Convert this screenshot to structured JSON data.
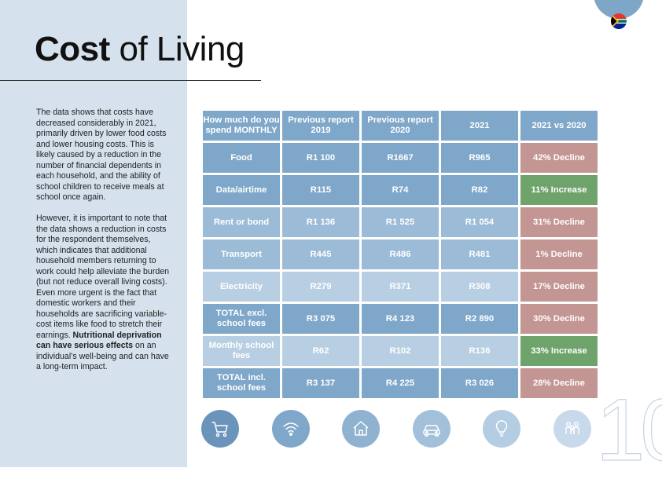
{
  "title": {
    "bold": "Cost",
    "rest": " of Living"
  },
  "body": {
    "p1": "The data shows that costs have decreased considerably in 2021, primarily driven by lower food costs and lower housing costs. This is likely caused by a reduction in the number of financial dependents in each household, and the ability of school children to receive meals at school once again.",
    "p2_text": "However, it is important to note that the data shows a reduction in costs for the respondent themselves, which indicates that additional household members returning to work could help alleviate the burden (but not reduce overall living costs). Even more urgent is the fact that domestic workers and their households are sacrificing variable-cost items like food to stretch their earnings.",
    "p2_bold": "Nutritional deprivation can have serious effects",
    "p2_end": " on an individual’s well-being and can have a long-term impact."
  },
  "table": {
    "headers": [
      "How much do you spend MONTHLY",
      "Previous report 2019",
      "Previous report 2020",
      "2021",
      "2021 vs 2020"
    ],
    "rows": [
      {
        "label": "Food",
        "y2019": "R1 100",
        "y2020": "R1667",
        "y2021": "R965",
        "change": "42% Decline"
      },
      {
        "label": "Data/airtime",
        "y2019": "R115",
        "y2020": "R74",
        "y2021": "R82",
        "change": "11% Increase"
      },
      {
        "label": "Rent or bond",
        "y2019": "R1 136",
        "y2020": "R1 525",
        "y2021": "R1 054",
        "change": "31% Decline"
      },
      {
        "label": "Transport",
        "y2019": "R445",
        "y2020": "R486",
        "y2021": "R481",
        "change": "1% Decline"
      },
      {
        "label": "Electricity",
        "y2019": "R279",
        "y2020": "R371",
        "y2021": "R308",
        "change": "17% Decline"
      },
      {
        "label": "TOTAL excl. school fees",
        "y2019": "R3 075",
        "y2020": "R4 123",
        "y2021": "R2 890",
        "change": "30% Decline"
      },
      {
        "label": "Monthly school fees",
        "y2019": "R62",
        "y2020": "R102",
        "y2021": "R136",
        "change": "33% Increase"
      },
      {
        "label": "TOTAL incl. school fees",
        "y2019": "R3 137",
        "y2020": "R4 225",
        "y2021": "R3 026",
        "change": "28% Decline"
      }
    ]
  },
  "icons": [
    {
      "name": "cart-icon",
      "color": "#6b94bb"
    },
    {
      "name": "wifi-icon",
      "color": "#7fa7c9"
    },
    {
      "name": "house-icon",
      "color": "#8fb2d0"
    },
    {
      "name": "car-icon",
      "color": "#a3c0da"
    },
    {
      "name": "lightbulb-icon",
      "color": "#b5cde2"
    },
    {
      "name": "family-icon",
      "color": "#c7d9ea"
    }
  ],
  "page_number": "10",
  "colors": {
    "decline": "#c39593",
    "increase": "#6fa36c",
    "header": "#7fa7c9",
    "side_panel": "#d5e1ec"
  }
}
